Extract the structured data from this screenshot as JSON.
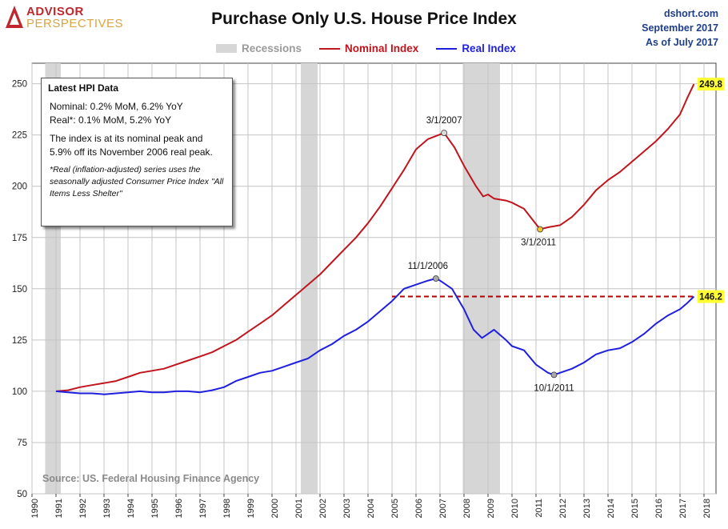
{
  "logo": {
    "line1": "ADVISOR",
    "line2": "PERSPECTIVES"
  },
  "header": {
    "title": "Purchase Only U.S. House Price Index"
  },
  "meta": {
    "site": "dshort.com",
    "date": "September 2017",
    "as_of": "As of July 2017"
  },
  "legend": {
    "recessions": "Recessions",
    "nominal": "Nominal Index",
    "real": "Real Index"
  },
  "colors": {
    "nominal": "#c0151d",
    "real": "#1f1fe0",
    "recession": "#d6d6d6",
    "callout": "#ffff33",
    "grid": "#c4c4c4",
    "meta": "#1f3e8a"
  },
  "infobox": {
    "title": "Latest HPI Data",
    "nominal_line": "Nominal: 0.2% MoM, 6.2% YoY",
    "real_line": "Real*: 0.1% MoM, 5.2% YoY",
    "para": "The index is at its nominal peak and 5.9% off its November 2006 real peak.",
    "note": "*Real (inflation-adjusted) series uses the seasonally adjusted Consumer Price Index \"All Items Less Shelter\""
  },
  "source": "Source: US. Federal Housing Finance Agency",
  "chart_data": {
    "type": "line",
    "title": "Purchase Only U.S. House Price Index",
    "xlim": [
      1990,
      2018.5
    ],
    "ylim": [
      50,
      260
    ],
    "x_ticks": [
      "1990",
      "1991",
      "1992",
      "1993",
      "1994",
      "1995",
      "1996",
      "1997",
      "1998",
      "1999",
      "2000",
      "2001",
      "2002",
      "2003",
      "2004",
      "2005",
      "2006",
      "2007",
      "2008",
      "2009",
      "2010",
      "2011",
      "2012",
      "2013",
      "2014",
      "2015",
      "2016",
      "2017",
      "2018"
    ],
    "y_ticks": [
      50,
      75,
      100,
      125,
      150,
      175,
      200,
      225,
      250
    ],
    "grid": true,
    "legend_position": "top-center",
    "recessions": [
      [
        1990.55,
        1991.2
      ],
      [
        2001.2,
        2001.9
      ],
      [
        2007.95,
        2009.5
      ]
    ],
    "series": [
      {
        "name": "Nominal Index",
        "x": [
          1991.0,
          1991.5,
          1992.0,
          1992.5,
          1993.0,
          1993.5,
          1994.0,
          1994.5,
          1995.0,
          1995.5,
          1996.0,
          1996.5,
          1997.0,
          1997.5,
          1998.0,
          1998.5,
          1999.0,
          1999.5,
          2000.0,
          2000.5,
          2001.0,
          2001.5,
          2002.0,
          2002.5,
          2003.0,
          2003.5,
          2004.0,
          2004.5,
          2005.0,
          2005.5,
          2006.0,
          2006.5,
          2007.17,
          2007.6,
          2008.0,
          2008.5,
          2008.8,
          2009.0,
          2009.25,
          2009.75,
          2010.0,
          2010.5,
          2011.17,
          2011.5,
          2012.0,
          2012.5,
          2013.0,
          2013.5,
          2014.0,
          2014.5,
          2015.0,
          2015.5,
          2016.0,
          2016.5,
          2017.0,
          2017.3,
          2017.58
        ],
        "values": [
          100,
          100.5,
          102,
          103,
          104,
          105,
          107,
          109,
          110,
          111,
          113,
          115,
          117,
          119,
          122,
          125,
          129,
          133,
          137,
          142,
          147,
          152,
          157,
          163,
          169,
          175,
          182,
          190,
          199,
          208,
          218,
          223,
          226,
          219,
          210,
          200,
          195,
          196,
          194,
          193,
          192,
          189,
          179,
          180,
          181,
          185,
          191,
          198,
          203,
          207,
          212,
          217,
          222,
          228,
          235,
          243,
          249.8
        ]
      },
      {
        "name": "Real Index",
        "x": [
          1991.0,
          1991.5,
          1992.0,
          1992.5,
          1993.0,
          1993.5,
          1994.0,
          1994.5,
          1995.0,
          1995.5,
          1996.0,
          1996.5,
          1997.0,
          1997.5,
          1998.0,
          1998.5,
          1999.0,
          1999.5,
          2000.0,
          2000.5,
          2001.0,
          2001.5,
          2002.0,
          2002.5,
          2003.0,
          2003.5,
          2004.0,
          2004.5,
          2005.0,
          2005.5,
          2006.0,
          2006.5,
          2006.83,
          2007.0,
          2007.5,
          2008.0,
          2008.4,
          2008.75,
          2009.0,
          2009.25,
          2009.75,
          2010.0,
          2010.5,
          2011.0,
          2011.5,
          2011.75,
          2012.0,
          2012.5,
          2013.0,
          2013.5,
          2014.0,
          2014.5,
          2015.0,
          2015.5,
          2016.0,
          2016.5,
          2017.0,
          2017.3,
          2017.58
        ],
        "values": [
          100,
          99.5,
          99,
          99,
          98.5,
          99,
          99.5,
          100,
          99.5,
          99.5,
          100,
          100,
          99.5,
          100.5,
          102,
          105,
          107,
          109,
          110,
          112,
          114,
          116,
          120,
          123,
          127,
          130,
          134,
          139,
          144,
          150,
          152,
          154,
          155,
          154,
          150,
          140,
          130,
          126,
          128,
          130,
          125,
          122,
          120,
          113,
          109,
          108,
          109,
          111,
          114,
          118,
          120,
          121,
          124,
          128,
          133,
          137,
          140,
          143,
          146.2
        ]
      }
    ],
    "annotations": [
      {
        "label": "3/1/2007",
        "x": 2007.17,
        "y": 226
      },
      {
        "label": "3/1/2011",
        "x": 2011.17,
        "y": 179
      },
      {
        "label": "11/1/2006",
        "x": 2006.83,
        "y": 155
      },
      {
        "label": "10/1/2011",
        "x": 2011.75,
        "y": 108
      }
    ],
    "end_labels": [
      {
        "label": "249.8",
        "y": 249.8
      },
      {
        "label": "146.2",
        "y": 146.2
      }
    ],
    "reference_line": {
      "y": 146.2,
      "from_x": 2005.0,
      "to_x": 2017.6
    }
  }
}
